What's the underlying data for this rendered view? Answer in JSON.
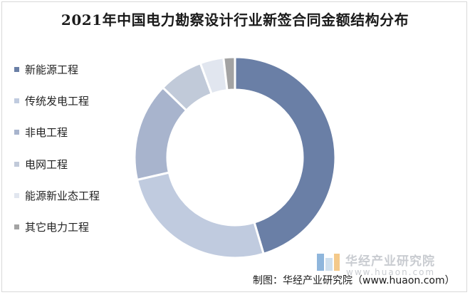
{
  "chart_data": {
    "type": "pie",
    "title": "2021年中国电力勘察设计行业新签合同金额结构分布",
    "categories": [
      "新能源工程",
      "传统发电工程",
      "非电工程",
      "电网工程",
      "能源新业态工程",
      "其它电力工程"
    ],
    "values": [
      44.5,
      25.5,
      15.5,
      7.0,
      3.7,
      1.8
    ],
    "colors": [
      "#6a7fa6",
      "#c0cbdf",
      "#a8b4cd",
      "#c1cad9",
      "#e1e6ef",
      "#a3a3a3"
    ],
    "donut": true,
    "legend_position": "left",
    "source": "制图：华经产业研究院（www.huaon.com）"
  },
  "watermark": {
    "name": "华经产业研究院",
    "url": "www.huaon.com"
  }
}
